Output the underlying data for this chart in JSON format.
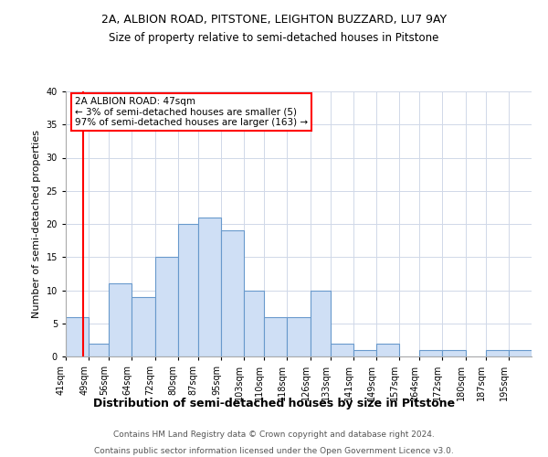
{
  "title1": "2A, ALBION ROAD, PITSTONE, LEIGHTON BUZZARD, LU7 9AY",
  "title2": "Size of property relative to semi-detached houses in Pitstone",
  "xlabel": "Distribution of semi-detached houses by size in Pitstone",
  "ylabel": "Number of semi-detached properties",
  "annotation_line1": "2A ALBION ROAD: 47sqm",
  "annotation_line2": "← 3% of semi-detached houses are smaller (5)",
  "annotation_line3": "97% of semi-detached houses are larger (163) →",
  "footer1": "Contains HM Land Registry data © Crown copyright and database right 2024.",
  "footer2": "Contains public sector information licensed under the Open Government Licence v3.0.",
  "categories": [
    "41sqm",
    "49sqm",
    "56sqm",
    "64sqm",
    "72sqm",
    "80sqm",
    "87sqm",
    "95sqm",
    "103sqm",
    "110sqm",
    "118sqm",
    "126sqm",
    "133sqm",
    "141sqm",
    "149sqm",
    "157sqm",
    "164sqm",
    "172sqm",
    "180sqm",
    "187sqm",
    "195sqm"
  ],
  "values": [
    6,
    2,
    11,
    9,
    15,
    20,
    21,
    19,
    10,
    6,
    6,
    10,
    2,
    1,
    2,
    0,
    1,
    1,
    0,
    1,
    1
  ],
  "bar_color": "#cfdff5",
  "bar_edge_color": "#6899cc",
  "annotation_box_color": "white",
  "annotation_box_edge_color": "red",
  "vline_color": "red",
  "vline_x": 47,
  "ylim": [
    0,
    40
  ],
  "yticks": [
    0,
    5,
    10,
    15,
    20,
    25,
    30,
    35,
    40
  ],
  "bin_edges": [
    41,
    49,
    56,
    64,
    72,
    80,
    87,
    95,
    103,
    110,
    118,
    126,
    133,
    141,
    149,
    157,
    164,
    172,
    180,
    187,
    195,
    203
  ],
  "title1_fontsize": 9,
  "title2_fontsize": 8.5,
  "xlabel_fontsize": 9,
  "ylabel_fontsize": 8,
  "tick_fontsize": 7,
  "footer_fontsize": 6.5,
  "annotation_fontsize": 7.5
}
